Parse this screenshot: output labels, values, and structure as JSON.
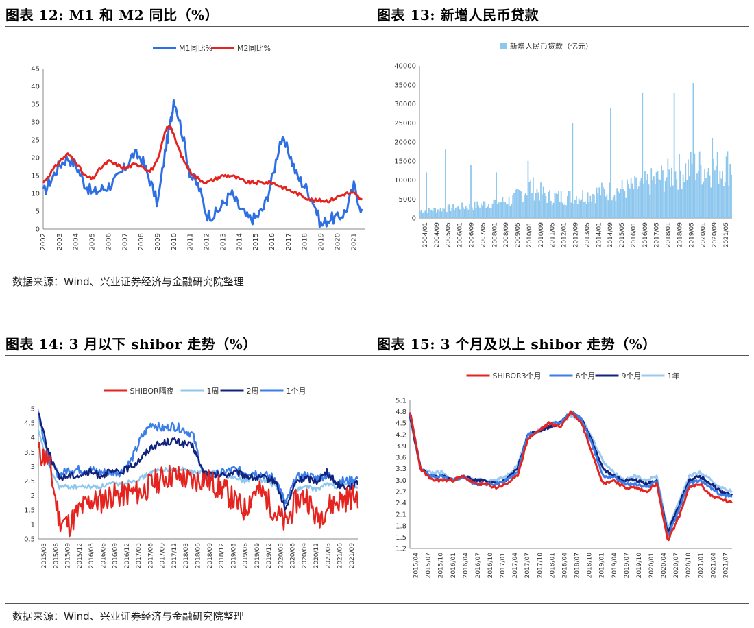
{
  "panels": [
    {
      "title": "图表 12:  M1 和 M2 同比（%）",
      "chart_data": {
        "type": "line",
        "x": [
          2002.0,
          2002.5,
          2003.0,
          2003.5,
          2004.0,
          2004.5,
          2005.0,
          2005.5,
          2006.0,
          2006.5,
          2007.0,
          2007.5,
          2008.0,
          2008.5,
          2009.0,
          2009.5,
          2009.8,
          2010.0,
          2010.5,
          2011.0,
          2011.5,
          2012.0,
          2012.5,
          2013.0,
          2013.5,
          2014.0,
          2014.5,
          2015.0,
          2015.5,
          2016.0,
          2016.5,
          2017.0,
          2017.5,
          2018.0,
          2018.5,
          2019.0,
          2019.5,
          2020.0,
          2020.5,
          2021.0,
          2021.5
        ],
        "series": [
          {
            "name": "M1同比%",
            "color": "#2f6fe4",
            "values": [
              10,
              14,
              18,
              20,
              18,
              13,
              10,
              11,
              12,
              14,
              17,
              21,
              20,
              14,
              7,
              23,
              30,
              37,
              27,
              15,
              12,
              4,
              4,
              7,
              10,
              6,
              3,
              3,
              6,
              14,
              25,
              22,
              15,
              12,
              8,
              1,
              3,
              3,
              5,
              12,
              5
            ]
          },
          {
            "name": "M2同比%",
            "color": "#e52420",
            "values": [
              13,
              16,
              19,
              21,
              19,
              15,
              14,
              17,
              19,
              18,
              17,
              18,
              18,
              16,
              19,
              28,
              29,
              26,
              20,
              16,
              14,
              13,
              14,
              15,
              15,
              14,
              13,
              13,
              13,
              13,
              12,
              11,
              10,
              9,
              8,
              8,
              8,
              9,
              10,
              10,
              8
            ]
          }
        ],
        "xticks": [
          2002,
          2003,
          2004,
          2005,
          2006,
          2007,
          2008,
          2009,
          2010,
          2011,
          2012,
          2013,
          2014,
          2015,
          2016,
          2017,
          2018,
          2019,
          2020,
          2021
        ],
        "ylim": [
          0,
          45
        ],
        "yticks": [
          0,
          5,
          10,
          15,
          20,
          25,
          30,
          35,
          40,
          45
        ],
        "legend": "top-center"
      }
    },
    {
      "title": "图表 13:  新增人民币贷款",
      "chart_data": {
        "type": "bar",
        "series": [
          {
            "name": "新增人民币贷款（亿元）",
            "color": "#8ec7ee"
          }
        ],
        "trend": [
          2000,
          2500,
          3000,
          3500,
          4500,
          5000,
          9000,
          6000,
          6000,
          6500,
          7500,
          8000,
          9000,
          11000,
          13000,
          14500,
          14000,
          15000
        ],
        "spikes": [
          [
            5,
            12000
          ],
          [
            20,
            18000
          ],
          [
            40,
            14000
          ],
          [
            60,
            12000
          ],
          [
            85,
            15000
          ],
          [
            120,
            25000
          ],
          [
            150,
            29000
          ],
          [
            175,
            33000
          ],
          [
            200,
            33000
          ],
          [
            215,
            35500
          ],
          [
            230,
            21000
          ]
        ],
        "ylim": [
          0,
          40000
        ],
        "yticks": [
          0,
          5000,
          10000,
          15000,
          20000,
          25000,
          30000,
          35000,
          40000
        ],
        "xticks": [
          "2004/01",
          "2004/09",
          "2005/05",
          "2006/01",
          "2006/09",
          "2007/05",
          "2008/01",
          "2008/09",
          "2009/05",
          "2010/01",
          "2010/09",
          "2011/05",
          "2012/01",
          "2012/09",
          "2013/05",
          "2014/01",
          "2014/09",
          "2015/05",
          "2016/01",
          "2016/09",
          "2017/05",
          "2018/01",
          "2018/09",
          "2019/05",
          "2020/01",
          "2020/09",
          "2021/05"
        ],
        "legend": "top-center"
      }
    },
    {
      "title": "图表 14:  3 月以下 shibor 走势（%）",
      "chart_data": {
        "type": "line",
        "series": [
          {
            "name": "SHIBOR隔夜",
            "color": "#e52420",
            "values": [
              3.5,
              3.2,
              1.2,
              1.0,
              1.5,
              1.8,
              1.8,
              2.0,
              2.0,
              2.1,
              2.1,
              2.4,
              2.6,
              2.7,
              2.6,
              2.5,
              2.6,
              2.4,
              2.2,
              1.8,
              1.5,
              2.2,
              2.0,
              1.4,
              1.0,
              1.8,
              2.0,
              1.2,
              1.6,
              1.8,
              1.9,
              2.0
            ]
          },
          {
            "name": "1周",
            "color": "#8ec7ee",
            "values": [
              4.2,
              3.0,
              2.3,
              2.3,
              2.3,
              2.3,
              2.3,
              2.4,
              2.4,
              2.5,
              2.6,
              2.8,
              2.9,
              2.9,
              2.9,
              2.8,
              2.8,
              2.8,
              2.7,
              2.6,
              2.5,
              2.6,
              2.5,
              2.3,
              1.8,
              2.2,
              2.3,
              2.2,
              2.4,
              2.3,
              2.4,
              2.3
            ]
          },
          {
            "name": "2周",
            "color": "#12237e",
            "values": [
              4.9,
              3.5,
              2.6,
              2.7,
              2.7,
              2.8,
              2.7,
              2.8,
              2.8,
              3.0,
              3.3,
              3.7,
              3.8,
              3.9,
              3.8,
              3.7,
              2.8,
              2.7,
              2.7,
              2.8,
              2.7,
              2.6,
              2.6,
              2.5,
              1.5,
              2.5,
              2.6,
              2.5,
              2.8,
              2.4,
              2.3,
              2.4
            ]
          },
          {
            "name": "1个月",
            "color": "#3b7ee8",
            "values": [
              4.9,
              3.2,
              2.7,
              2.9,
              2.9,
              2.9,
              2.8,
              2.8,
              2.8,
              3.2,
              4.0,
              4.5,
              4.3,
              4.4,
              4.3,
              4.1,
              2.7,
              2.7,
              2.8,
              2.9,
              2.8,
              2.8,
              2.7,
              2.6,
              1.7,
              2.6,
              2.7,
              2.6,
              2.7,
              2.5,
              2.5,
              2.6
            ]
          }
        ],
        "ylim": [
          0.5,
          5
        ],
        "yticks": [
          0.5,
          1,
          1.5,
          2,
          2.5,
          3,
          3.5,
          4,
          4.5,
          5
        ],
        "xticks": [
          "2015/03",
          "2015/06",
          "2015/09",
          "2015/12",
          "2016/03",
          "2016/06",
          "2016/09",
          "2016/12",
          "2017/03",
          "2017/06",
          "2017/09",
          "2017/12",
          "2018/03",
          "2018/06",
          "2018/09",
          "2018/12",
          "2019/03",
          "2019/06",
          "2019/09",
          "2019/12",
          "2020/03",
          "2020/06",
          "2020/09",
          "2020/12",
          "2021/03",
          "2021/06",
          "2021/09"
        ],
        "legend": "top-center"
      }
    },
    {
      "title": "图表 15:  3 个月及以上 shibor 走势（%）",
      "chart_data": {
        "type": "line",
        "series": [
          {
            "name": "SHIBOR3个月",
            "color": "#e52420",
            "values": [
              4.8,
              3.3,
              3.0,
              3.0,
              3.0,
              3.1,
              2.9,
              2.9,
              2.8,
              2.9,
              3.1,
              4.1,
              4.3,
              4.5,
              4.4,
              4.8,
              4.5,
              3.7,
              2.9,
              3.0,
              2.8,
              2.8,
              2.7,
              2.9,
              1.4,
              2.0,
              2.8,
              2.9,
              2.6,
              2.5,
              2.4
            ]
          },
          {
            "name": "6个月",
            "color": "#3b7ee8",
            "values": [
              4.8,
              3.3,
              3.1,
              3.1,
              3.0,
              3.1,
              2.9,
              2.9,
              2.9,
              3.0,
              3.2,
              4.2,
              4.3,
              4.5,
              4.5,
              4.8,
              4.6,
              3.9,
              3.1,
              3.1,
              2.9,
              2.9,
              2.8,
              3.0,
              1.5,
              2.2,
              2.9,
              3.0,
              2.8,
              2.6,
              2.6
            ]
          },
          {
            "name": "9个月",
            "color": "#12237e",
            "values": [
              4.7,
              3.3,
              3.1,
              3.1,
              3.0,
              3.1,
              3.0,
              3.0,
              2.9,
              3.0,
              3.3,
              4.2,
              4.3,
              4.4,
              4.5,
              4.8,
              4.6,
              4.0,
              3.3,
              3.1,
              3.0,
              3.0,
              2.9,
              3.0,
              1.6,
              2.3,
              3.0,
              3.1,
              2.9,
              2.7,
              2.6
            ]
          },
          {
            "name": "1年",
            "color": "#9cc9ef",
            "values": [
              4.6,
              3.3,
              3.2,
              3.2,
              3.0,
              3.1,
              3.0,
              3.0,
              3.0,
              3.1,
              3.4,
              4.2,
              4.3,
              4.4,
              4.5,
              4.7,
              4.6,
              4.1,
              3.5,
              3.2,
              3.0,
              3.1,
              3.0,
              3.1,
              1.7,
              2.4,
              3.1,
              3.2,
              3.0,
              2.8,
              2.7
            ]
          }
        ],
        "ylim": [
          1.2,
          5.1
        ],
        "yticks": [
          1.2,
          1.5,
          1.8,
          2.1,
          2.4,
          2.7,
          3.0,
          3.3,
          3.6,
          3.9,
          4.2,
          4.5,
          4.8,
          5.1
        ],
        "xticks": [
          "2015/04",
          "2015/07",
          "2015/10",
          "2016/01",
          "2016/04",
          "2016/07",
          "2016/10",
          "2017/01",
          "2017/04",
          "2017/07",
          "2017/10",
          "2018/01",
          "2018/04",
          "2018/07",
          "2018/10",
          "2019/01",
          "2019/04",
          "2019/07",
          "2019/10",
          "2020/01",
          "2020/04",
          "2020/07",
          "2020/10",
          "2021/01",
          "2021/04",
          "2021/07"
        ],
        "legend": "top-center"
      }
    }
  ],
  "source_text": "数据来源：Wind、兴业证券经济与金融研究院整理"
}
